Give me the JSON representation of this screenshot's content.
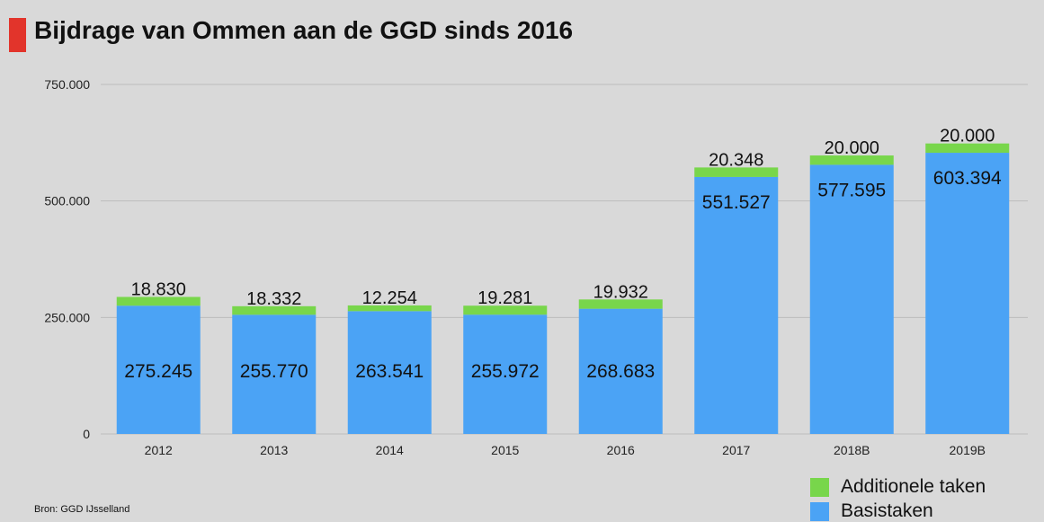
{
  "title": "Bijdrage van Ommen aan de GGD sinds 2016",
  "source": "Bron:  GGD IJsselland",
  "colors": {
    "accent_bar": "#e2342b",
    "additionele": "#78d64b",
    "basis": "#4ba3f5",
    "grid": "#bdbdbd"
  },
  "chart_data": {
    "type": "bar",
    "stacked": true,
    "categories": [
      "2012",
      "2013",
      "2014",
      "2015",
      "2016",
      "2017",
      "2018B",
      "2019B"
    ],
    "series": [
      {
        "name": "Basistaken",
        "values": [
          275245,
          255770,
          263541,
          255972,
          268683,
          551527,
          577595,
          603394
        ],
        "labels": [
          "275.245",
          "255.770",
          "263.541",
          "255.972",
          "268.683",
          "551.527",
          "577.595",
          "603.394"
        ]
      },
      {
        "name": "Additionele taken",
        "values": [
          18830,
          18332,
          12254,
          19281,
          19932,
          20348,
          20000,
          20000
        ],
        "labels": [
          "18.830",
          "18.332",
          "12.254",
          "19.281",
          "19.932",
          "20.348",
          "20.000",
          "20.000"
        ]
      }
    ],
    "yticks": [
      0,
      250000,
      500000,
      750000
    ],
    "ytick_labels": [
      "0",
      "250.000",
      "500.000",
      "750.000"
    ],
    "ylim": [
      0,
      750000
    ],
    "grid": true,
    "legend_position": "bottom-right"
  }
}
